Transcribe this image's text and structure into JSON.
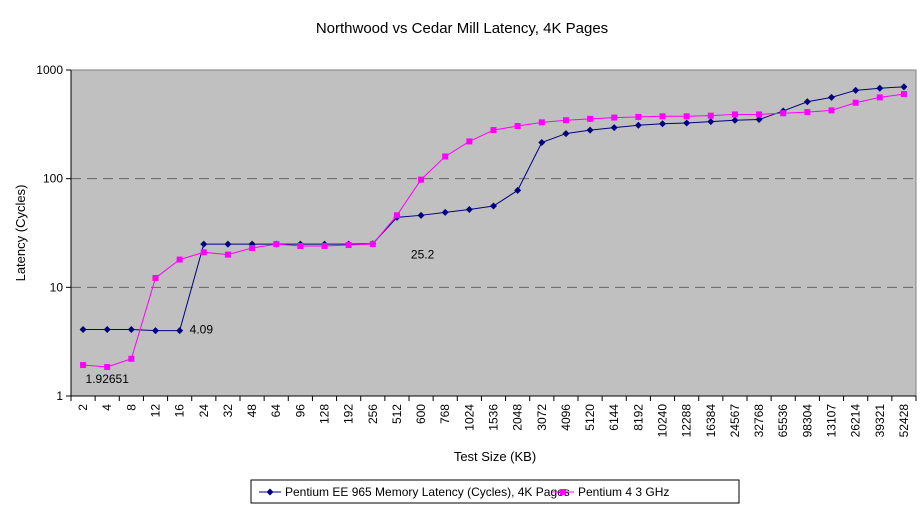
{
  "chart_data": {
    "type": "line",
    "title": "Northwood vs Cedar Mill Latency, 4K Pages",
    "xlabel": "Test Size (KB)",
    "ylabel": "Latency (Cycles)",
    "y_scale": "log",
    "ylim": [
      1,
      1000
    ],
    "y_ticks": [
      "1",
      "10",
      "100",
      "1000"
    ],
    "grid": "dashed horizontal major gridlines",
    "plot_background": "#C0C0C0",
    "legend_position": "bottom",
    "categories": [
      "2",
      "4",
      "8",
      "12",
      "16",
      "24",
      "32",
      "48",
      "64",
      "96",
      "128",
      "192",
      "256",
      "512",
      "600",
      "768",
      "1024",
      "1536",
      "2048",
      "3072",
      "4096",
      "5120",
      "6144",
      "8192",
      "10240",
      "12288",
      "16384",
      "24567",
      "32768",
      "65536",
      "98304",
      "13107",
      "26214",
      "39321",
      "52428"
    ],
    "series": [
      {
        "name": "Pentium EE 965 Memory Latency (Cycles), 4K Pages",
        "color": "#000080",
        "marker": "diamond",
        "values": [
          4.09,
          4.09,
          4.09,
          4.0,
          4.0,
          25.0,
          25.0,
          25.0,
          25.0,
          25.0,
          25.0,
          25.0,
          25.2,
          44,
          46,
          49,
          52,
          56,
          78,
          215,
          260,
          280,
          295,
          310,
          320,
          325,
          335,
          345,
          350,
          420,
          510,
          560,
          650,
          680,
          700
        ]
      },
      {
        "name": "Pentium 4 3 GHz",
        "color": "#FF00FF",
        "marker": "square",
        "values": [
          1.92651,
          1.85,
          2.2,
          12.2,
          18,
          21,
          20,
          23,
          25,
          24,
          24,
          24.5,
          25,
          46,
          98,
          160,
          220,
          280,
          305,
          330,
          345,
          355,
          365,
          370,
          375,
          375,
          380,
          390,
          390,
          400,
          410,
          425,
          500,
          560,
          600
        ]
      }
    ],
    "annotations": [
      {
        "text": "1.92651",
        "category": "4",
        "value": 1.92651
      },
      {
        "text": "4.09",
        "category": "16",
        "value": 4.09
      },
      {
        "text": "25.2",
        "category": "512",
        "value": 25.2
      }
    ]
  }
}
